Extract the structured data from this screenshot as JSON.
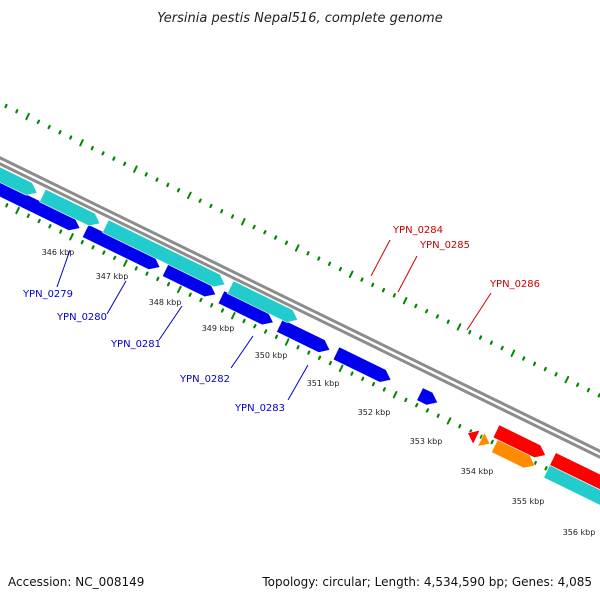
{
  "title": "Yersinia pestis Nepal516, complete genome",
  "footer": {
    "accession": "Accession: NC_008149",
    "summary": "Topology: circular; Length: 4,534,590 bp; Genes: 4,085"
  },
  "colors": {
    "blue": "#0000ee",
    "cyan": "#22cccc",
    "red": "#ff0000",
    "orange": "#ff8c00",
    "olive": "#6b8e23",
    "backbone": "#8c8c8c",
    "tick_dots": "#008800",
    "label_blue": "#0000cc",
    "label_red": "#cc0000"
  },
  "kbp_marks": [
    "346 kbp",
    "347 kbp",
    "348 kbp",
    "349 kbp",
    "350 kbp",
    "351 kbp",
    "352 kbp",
    "353 kbp",
    "354 kbp",
    "355 kbp",
    "356 kbp"
  ],
  "gene_labels": [
    {
      "name": "YPN_0279",
      "color": "label_blue"
    },
    {
      "name": "YPN_0280",
      "color": "label_blue"
    },
    {
      "name": "YPN_0281",
      "color": "label_blue"
    },
    {
      "name": "YPN_0282",
      "color": "label_blue"
    },
    {
      "name": "YPN_0283",
      "color": "label_blue"
    },
    {
      "name": "YPN_0284",
      "color": "label_red"
    },
    {
      "name": "YPN_0285",
      "color": "label_red"
    },
    {
      "name": "YPN_0286",
      "color": "label_red"
    }
  ]
}
